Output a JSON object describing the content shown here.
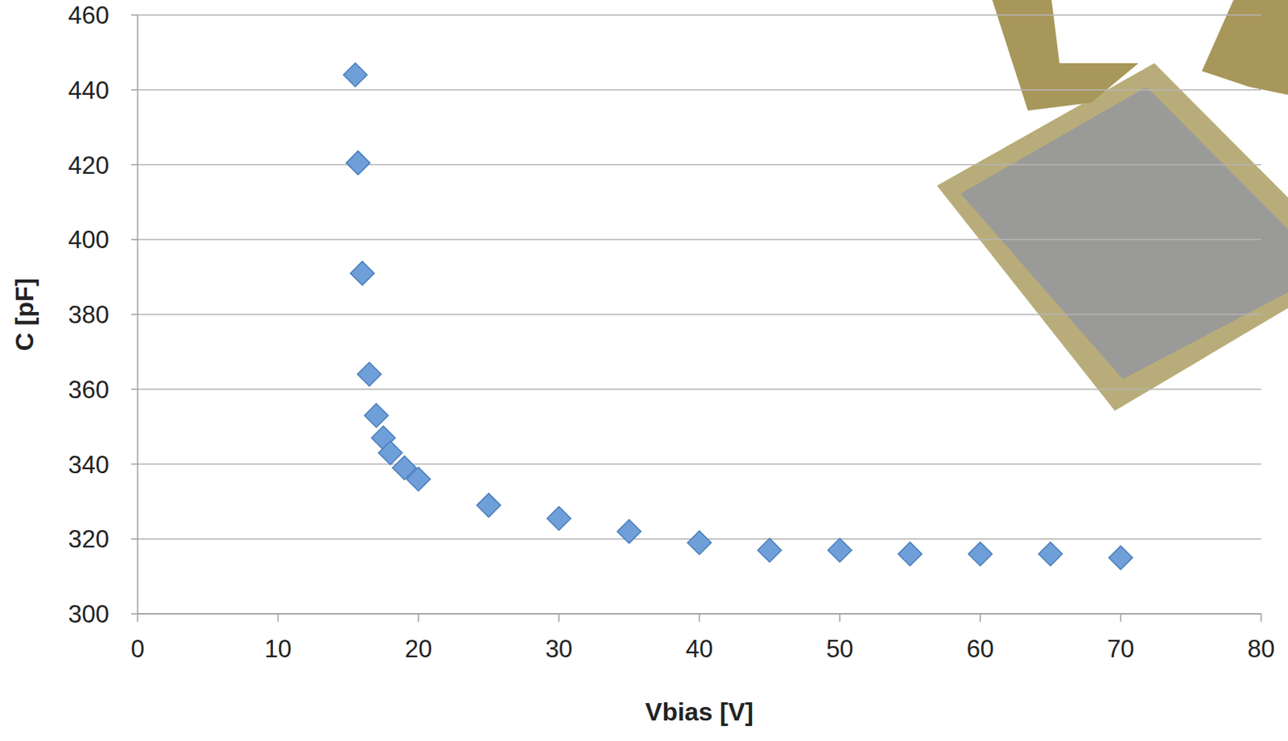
{
  "chart_data": {
    "type": "scatter",
    "x_label": "Vbias [V]",
    "y_label": "C [pF]",
    "x": [
      15.5,
      15.7,
      16,
      16.5,
      17,
      17.5,
      18,
      19,
      20,
      25,
      30,
      35,
      40,
      45,
      50,
      55,
      60,
      65,
      70
    ],
    "values": [
      444,
      420.5,
      391,
      364,
      353,
      347,
      343,
      339,
      336,
      329,
      325.5,
      322,
      319,
      317,
      317,
      316,
      316,
      316,
      315
    ],
    "color": "#6f9fd8",
    "marker": "diamond",
    "xlim": [
      0,
      80
    ],
    "ylim": [
      300,
      460
    ],
    "xticks": [
      0,
      10,
      20,
      30,
      40,
      50,
      60,
      70,
      80
    ],
    "yticks": [
      300,
      320,
      340,
      360,
      380,
      400,
      420,
      440,
      460
    ],
    "grid": true
  }
}
